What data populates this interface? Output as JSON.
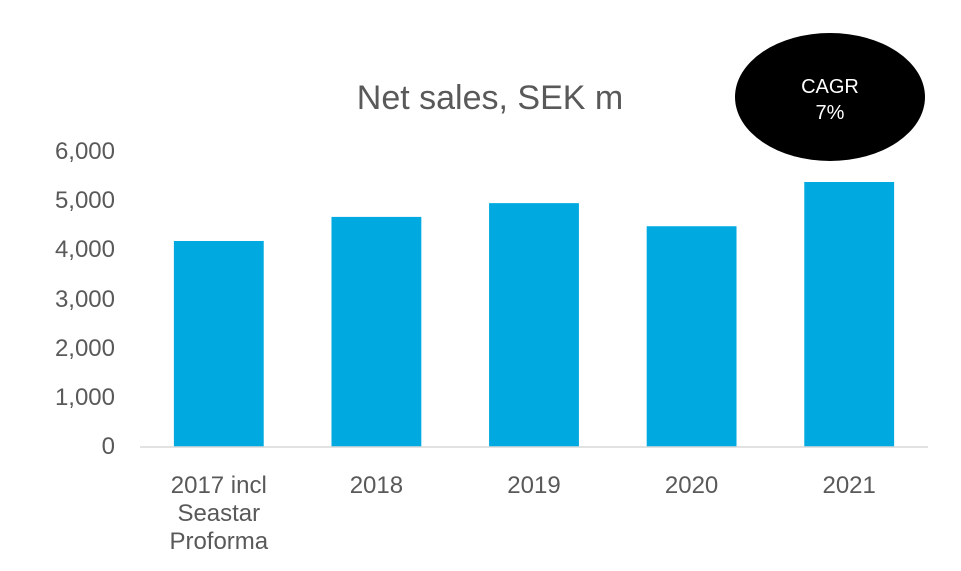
{
  "chart_data": {
    "type": "bar",
    "title": "Net sales, SEK m",
    "annotation": "CAGR 7%",
    "categories": [
      "2017 incl Seastar Proforma",
      "2018",
      "2019",
      "2020",
      "2021"
    ],
    "values": [
      4190,
      4680,
      4960,
      4490,
      5390
    ],
    "color": "#00a9e0",
    "ylim": [
      0,
      6000
    ],
    "yticks": [
      0,
      {
        "value": 1000,
        "label": "1,000"
      },
      {
        "value": 2000,
        "label": "2,000"
      },
      {
        "value": 3000,
        "label": "3,000"
      },
      {
        "value": 4000,
        "label": "4,000"
      },
      {
        "value": 5000,
        "label": "5,000"
      },
      {
        "value": 6000,
        "label": "6,000"
      }
    ],
    "grid": false
  }
}
